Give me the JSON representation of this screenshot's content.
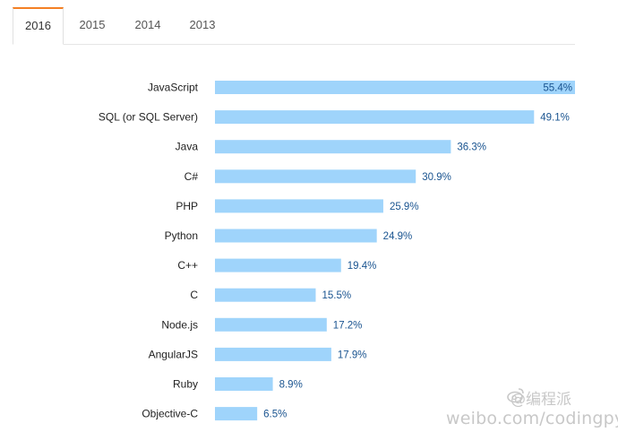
{
  "tabs": [
    {
      "label": "2016",
      "active": true
    },
    {
      "label": "2015",
      "active": false
    },
    {
      "label": "2014",
      "active": false
    },
    {
      "label": "2013",
      "active": false
    }
  ],
  "colors": {
    "bar": "#9fd4fb",
    "value_label": "#1a5490",
    "category_label": "#222222",
    "tab_accent": "#f48024"
  },
  "chart_data": {
    "type": "bar",
    "orientation": "horizontal",
    "categories": [
      "JavaScript",
      "SQL (or SQL Server)",
      "Java",
      "C#",
      "PHP",
      "Python",
      "C++",
      "C",
      "Node.js",
      "AngularJS",
      "Ruby",
      "Objective-C"
    ],
    "values": [
      55.4,
      49.1,
      36.3,
      30.9,
      25.9,
      24.9,
      19.4,
      15.5,
      17.2,
      17.9,
      8.9,
      6.5
    ],
    "value_labels": [
      "55.4%",
      "49.1%",
      "36.3%",
      "30.9%",
      "25.9%",
      "24.9%",
      "19.4%",
      "15.5%",
      "17.2%",
      "17.9%",
      "8.9%",
      "6.5%"
    ],
    "xlim": [
      0,
      55.4
    ],
    "unit": "%",
    "grid": false
  },
  "watermark": {
    "top": "@编程派",
    "bottom": "weibo.com/codingpy"
  }
}
